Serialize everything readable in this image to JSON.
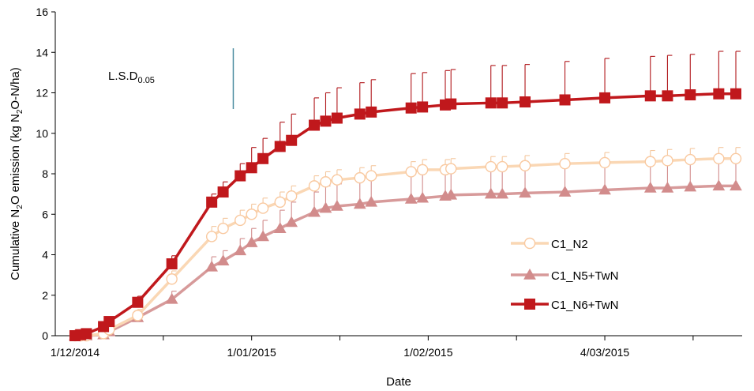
{
  "chart_data": {
    "type": "line",
    "xlabel": "Date",
    "ylabel": {
      "prefix": "Cumulative N",
      "sub": "2",
      "suffix": "O emission (kg N",
      "sub2": "2",
      "suffix2": "O-N/ha)"
    },
    "x_range": [
      "2014-12-01",
      "2015-03-27"
    ],
    "ylim": [
      0,
      16
    ],
    "y_ticks": [
      0,
      2,
      4,
      6,
      8,
      10,
      12,
      14,
      16
    ],
    "x_ticks": [
      {
        "date": "2014-12-01",
        "label": "1/12/2014"
      },
      {
        "date": "2015-01-01",
        "label": "1/01/2015"
      },
      {
        "date": "2015-02-01",
        "label": "1/02/2015"
      },
      {
        "date": "2015-03-04",
        "label": "4/03/2015"
      }
    ],
    "grid": false,
    "legend_position": "right-bottom",
    "annotation": {
      "text": "L.S.D",
      "sub": "0.05",
      "lsd_value": 3.0,
      "lsd_date": "2014-12-31"
    },
    "series": [
      {
        "name": "C1_N2",
        "marker": "circle",
        "line_color": "#FAD7B4",
        "marker_fill": "#FFFFFF",
        "marker_stroke": "#F9C9A0",
        "error_color": "#F4C79E",
        "points": [
          {
            "date": "2014-12-01",
            "y": 0.0,
            "err": 0.0
          },
          {
            "date": "2014-12-02",
            "y": 0.0,
            "err": 0.0
          },
          {
            "date": "2014-12-03",
            "y": 0.0,
            "err": 0.0
          },
          {
            "date": "2014-12-06",
            "y": 0.1,
            "err": 0.1
          },
          {
            "date": "2014-12-07",
            "y": 0.3,
            "err": 0.2
          },
          {
            "date": "2014-12-12",
            "y": 1.0,
            "err": 0.3
          },
          {
            "date": "2014-12-18",
            "y": 2.8,
            "err": 0.4
          },
          {
            "date": "2014-12-25",
            "y": 4.9,
            "err": 0.5
          },
          {
            "date": "2014-12-27",
            "y": 5.3,
            "err": 0.5
          },
          {
            "date": "2014-12-30",
            "y": 5.7,
            "err": 0.5
          },
          {
            "date": "2015-01-01",
            "y": 6.0,
            "err": 0.5
          },
          {
            "date": "2015-01-03",
            "y": 6.3,
            "err": 0.5
          },
          {
            "date": "2015-01-06",
            "y": 6.6,
            "err": 0.5
          },
          {
            "date": "2015-01-08",
            "y": 6.9,
            "err": 0.5
          },
          {
            "date": "2015-01-12",
            "y": 7.4,
            "err": 0.5
          },
          {
            "date": "2015-01-14",
            "y": 7.6,
            "err": 0.5
          },
          {
            "date": "2015-01-16",
            "y": 7.7,
            "err": 0.5
          },
          {
            "date": "2015-01-20",
            "y": 7.8,
            "err": 0.5
          },
          {
            "date": "2015-01-22",
            "y": 7.9,
            "err": 0.5
          },
          {
            "date": "2015-01-29",
            "y": 8.1,
            "err": 0.5
          },
          {
            "date": "2015-01-31",
            "y": 8.2,
            "err": 0.5
          },
          {
            "date": "2015-02-04",
            "y": 8.2,
            "err": 0.5
          },
          {
            "date": "2015-02-05",
            "y": 8.25,
            "err": 0.5
          },
          {
            "date": "2015-02-12",
            "y": 8.35,
            "err": 0.5
          },
          {
            "date": "2015-02-14",
            "y": 8.35,
            "err": 0.5
          },
          {
            "date": "2015-02-18",
            "y": 8.4,
            "err": 0.5
          },
          {
            "date": "2015-02-25",
            "y": 8.5,
            "err": 0.5
          },
          {
            "date": "2015-03-04",
            "y": 8.55,
            "err": 0.5
          },
          {
            "date": "2015-03-12",
            "y": 8.6,
            "err": 0.55
          },
          {
            "date": "2015-03-15",
            "y": 8.65,
            "err": 0.55
          },
          {
            "date": "2015-03-19",
            "y": 8.7,
            "err": 0.55
          },
          {
            "date": "2015-03-24",
            "y": 8.75,
            "err": 0.55
          },
          {
            "date": "2015-03-27",
            "y": 8.75,
            "err": 0.55
          }
        ]
      },
      {
        "name": "C1_N5+TwN",
        "marker": "triangle",
        "line_color": "#D79A9A",
        "marker_fill": "#D28C8C",
        "marker_stroke": "#D28C8C",
        "error_color": "#D28C8C",
        "points": [
          {
            "date": "2014-12-01",
            "y": 0.0,
            "err": 0.0
          },
          {
            "date": "2014-12-02",
            "y": 0.0,
            "err": 0.0
          },
          {
            "date": "2014-12-03",
            "y": 0.0,
            "err": 0.0
          },
          {
            "date": "2014-12-06",
            "y": 0.05,
            "err": 0.1
          },
          {
            "date": "2014-12-07",
            "y": 0.2,
            "err": 0.2
          },
          {
            "date": "2014-12-12",
            "y": 0.9,
            "err": 0.3
          },
          {
            "date": "2014-12-18",
            "y": 1.8,
            "err": 0.4
          },
          {
            "date": "2014-12-25",
            "y": 3.4,
            "err": 0.5
          },
          {
            "date": "2014-12-27",
            "y": 3.7,
            "err": 0.5
          },
          {
            "date": "2014-12-30",
            "y": 4.2,
            "err": 0.6
          },
          {
            "date": "2015-01-01",
            "y": 4.6,
            "err": 0.7
          },
          {
            "date": "2015-01-03",
            "y": 4.9,
            "err": 0.8
          },
          {
            "date": "2015-01-06",
            "y": 5.3,
            "err": 0.9
          },
          {
            "date": "2015-01-08",
            "y": 5.6,
            "err": 1.0
          },
          {
            "date": "2015-01-12",
            "y": 6.1,
            "err": 1.0
          },
          {
            "date": "2015-01-14",
            "y": 6.3,
            "err": 1.1
          },
          {
            "date": "2015-01-16",
            "y": 6.4,
            "err": 1.1
          },
          {
            "date": "2015-01-20",
            "y": 6.5,
            "err": 1.2
          },
          {
            "date": "2015-01-22",
            "y": 6.6,
            "err": 1.2
          },
          {
            "date": "2015-01-29",
            "y": 6.75,
            "err": 1.3
          },
          {
            "date": "2015-01-31",
            "y": 6.8,
            "err": 1.3
          },
          {
            "date": "2015-02-04",
            "y": 6.9,
            "err": 1.3
          },
          {
            "date": "2015-02-05",
            "y": 6.95,
            "err": 1.3
          },
          {
            "date": "2015-02-12",
            "y": 7.0,
            "err": 1.3
          },
          {
            "date": "2015-02-14",
            "y": 7.0,
            "err": 1.3
          },
          {
            "date": "2015-02-18",
            "y": 7.05,
            "err": 1.3
          },
          {
            "date": "2015-02-25",
            "y": 7.1,
            "err": 1.3
          },
          {
            "date": "2015-03-04",
            "y": 7.2,
            "err": 1.35
          },
          {
            "date": "2015-03-12",
            "y": 7.3,
            "err": 1.35
          },
          {
            "date": "2015-03-15",
            "y": 7.3,
            "err": 1.35
          },
          {
            "date": "2015-03-19",
            "y": 7.35,
            "err": 1.35
          },
          {
            "date": "2015-03-24",
            "y": 7.4,
            "err": 1.35
          },
          {
            "date": "2015-03-27",
            "y": 7.4,
            "err": 1.35
          }
        ]
      },
      {
        "name": "C1_N6+TwN",
        "marker": "square",
        "line_color": "#C0181C",
        "marker_fill": "#C0181C",
        "marker_stroke": "#C0181C",
        "error_color": "#B0161A",
        "points": [
          {
            "date": "2014-12-01",
            "y": 0.0,
            "err": 0.0
          },
          {
            "date": "2014-12-02",
            "y": 0.05,
            "err": 0.05
          },
          {
            "date": "2014-12-03",
            "y": 0.1,
            "err": 0.05
          },
          {
            "date": "2014-12-06",
            "y": 0.45,
            "err": 0.1
          },
          {
            "date": "2014-12-07",
            "y": 0.7,
            "err": 0.2
          },
          {
            "date": "2014-12-12",
            "y": 1.65,
            "err": 0.3
          },
          {
            "date": "2014-12-18",
            "y": 3.55,
            "err": 0.4
          },
          {
            "date": "2014-12-25",
            "y": 6.6,
            "err": 0.4
          },
          {
            "date": "2014-12-27",
            "y": 7.1,
            "err": 0.5
          },
          {
            "date": "2014-12-30",
            "y": 7.9,
            "err": 0.6
          },
          {
            "date": "2015-01-01",
            "y": 8.3,
            "err": 1.0
          },
          {
            "date": "2015-01-03",
            "y": 8.75,
            "err": 1.0
          },
          {
            "date": "2015-01-06",
            "y": 9.35,
            "err": 1.2
          },
          {
            "date": "2015-01-08",
            "y": 9.65,
            "err": 1.3
          },
          {
            "date": "2015-01-12",
            "y": 10.4,
            "err": 1.35
          },
          {
            "date": "2015-01-14",
            "y": 10.6,
            "err": 1.4
          },
          {
            "date": "2015-01-16",
            "y": 10.75,
            "err": 1.5
          },
          {
            "date": "2015-01-20",
            "y": 10.95,
            "err": 1.55
          },
          {
            "date": "2015-01-22",
            "y": 11.05,
            "err": 1.6
          },
          {
            "date": "2015-01-29",
            "y": 11.25,
            "err": 1.7
          },
          {
            "date": "2015-01-31",
            "y": 11.3,
            "err": 1.7
          },
          {
            "date": "2015-02-04",
            "y": 11.4,
            "err": 1.7
          },
          {
            "date": "2015-02-05",
            "y": 11.45,
            "err": 1.7
          },
          {
            "date": "2015-02-12",
            "y": 11.5,
            "err": 1.85
          },
          {
            "date": "2015-02-14",
            "y": 11.5,
            "err": 1.85
          },
          {
            "date": "2015-02-18",
            "y": 11.55,
            "err": 1.85
          },
          {
            "date": "2015-02-25",
            "y": 11.65,
            "err": 1.9
          },
          {
            "date": "2015-03-04",
            "y": 11.75,
            "err": 1.95
          },
          {
            "date": "2015-03-12",
            "y": 11.85,
            "err": 1.95
          },
          {
            "date": "2015-03-15",
            "y": 11.85,
            "err": 2.0
          },
          {
            "date": "2015-03-19",
            "y": 11.9,
            "err": 2.0
          },
          {
            "date": "2015-03-24",
            "y": 11.95,
            "err": 2.1
          },
          {
            "date": "2015-03-27",
            "y": 11.95,
            "err": 2.1
          }
        ]
      }
    ]
  }
}
